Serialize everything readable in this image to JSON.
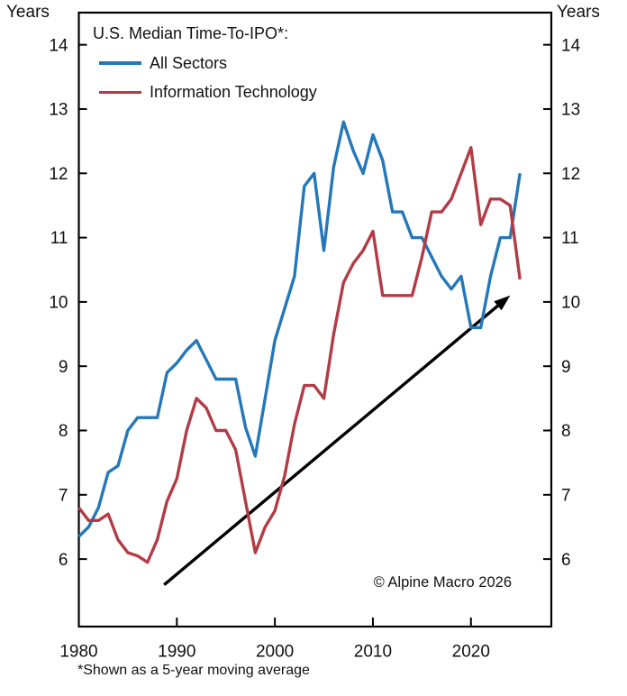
{
  "chart_data": {
    "type": "line",
    "title": "U.S. Median Time-To-IPO*:",
    "ylabel_left": "Years",
    "ylabel_right": "Years",
    "grid": false,
    "legend_position": "top-left",
    "xlim": [
      1980,
      2028.2
    ],
    "ylim": [
      4.95,
      14.5
    ],
    "yticks": [
      6,
      7,
      8,
      9,
      10,
      11,
      12,
      13,
      14
    ],
    "xticks": [
      1980,
      1990,
      2000,
      2010,
      2020
    ],
    "x": [
      1980,
      1981,
      1982,
      1983,
      1984,
      1985,
      1986,
      1987,
      1988,
      1989,
      1990,
      1991,
      1992,
      1993,
      1994,
      1995,
      1996,
      1997,
      1998,
      1999,
      2000,
      2001,
      2002,
      2003,
      2004,
      2005,
      2006,
      2007,
      2008,
      2009,
      2010,
      2011,
      2012,
      2013,
      2014,
      2015,
      2016,
      2017,
      2018,
      2019,
      2020,
      2021,
      2022,
      2023,
      2024,
      2025
    ],
    "series": [
      {
        "name": "All Sectors",
        "color": "#2478b9",
        "values": [
          6.35,
          6.5,
          6.8,
          7.35,
          7.45,
          8.0,
          8.2,
          8.2,
          8.2,
          8.9,
          9.05,
          9.25,
          9.4,
          9.1,
          8.8,
          8.8,
          8.8,
          8.05,
          7.6,
          8.5,
          9.4,
          9.9,
          10.4,
          11.8,
          12.0,
          10.8,
          12.1,
          12.8,
          12.35,
          12.0,
          12.6,
          12.2,
          11.4,
          11.4,
          11.0,
          11.0,
          10.7,
          10.4,
          10.2,
          10.4,
          9.6,
          9.6,
          10.4,
          11.0,
          11.0,
          12.0
        ]
      },
      {
        "name": "Information Technology",
        "color": "#b23c46",
        "values": [
          6.8,
          6.6,
          6.6,
          6.7,
          6.3,
          6.1,
          6.05,
          5.95,
          6.3,
          6.9,
          7.25,
          8.0,
          8.5,
          8.35,
          8.0,
          8.0,
          7.7,
          6.9,
          6.1,
          6.5,
          6.75,
          7.3,
          8.1,
          8.7,
          8.7,
          8.5,
          9.5,
          10.3,
          10.6,
          10.8,
          11.1,
          10.1,
          10.1,
          10.1,
          10.1,
          10.7,
          11.4,
          11.4,
          11.6,
          12.0,
          12.4,
          11.2,
          11.6,
          11.6,
          11.5,
          10.35
        ]
      }
    ],
    "annotations": {
      "arrow": {
        "from": {
          "year": 1988.7,
          "value": 5.6
        },
        "to": {
          "year": 2024.0,
          "value": 10.1
        },
        "color": "#000000"
      }
    },
    "copyright": "© Alpine Macro 2026",
    "footnote": "*Shown as a 5-year moving average",
    "colors": {
      "axis": "#000000",
      "text": "#111111"
    }
  }
}
